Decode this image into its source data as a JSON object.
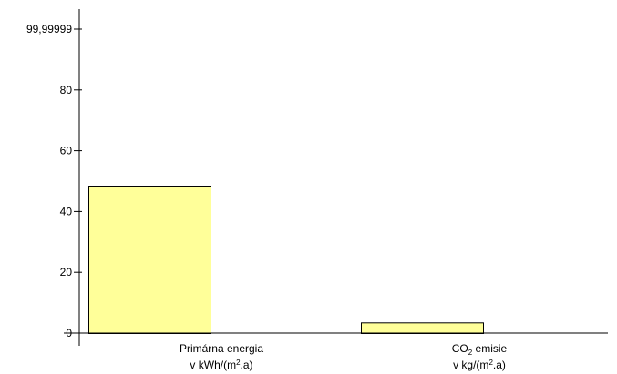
{
  "chart_data": {
    "type": "bar",
    "categories": [
      {
        "line1": {
          "pre": "Primárna energia",
          "sub": "",
          "post": ""
        },
        "line2": {
          "pre": "v kWh/(m",
          "sup": "2",
          "post": ".a)"
        }
      },
      {
        "line1": {
          "pre": "CO",
          "sub": "2",
          "post": " emisie"
        },
        "line2": {
          "pre": "v kg/(m",
          "sup": "2",
          "post": ".a)"
        }
      }
    ],
    "values": [
      48.5,
      3.5
    ],
    "ylim": [
      0,
      99.99999
    ],
    "yticks": [
      0,
      20,
      40,
      60,
      80,
      99.99999
    ],
    "ytick_labels": [
      "0",
      "20",
      "40",
      "60",
      "80",
      "99,99999"
    ],
    "bar_color": "#ffff99",
    "bar_edge_color": "#000000",
    "grid": false,
    "title": "",
    "xlabel": "",
    "ylabel": ""
  }
}
